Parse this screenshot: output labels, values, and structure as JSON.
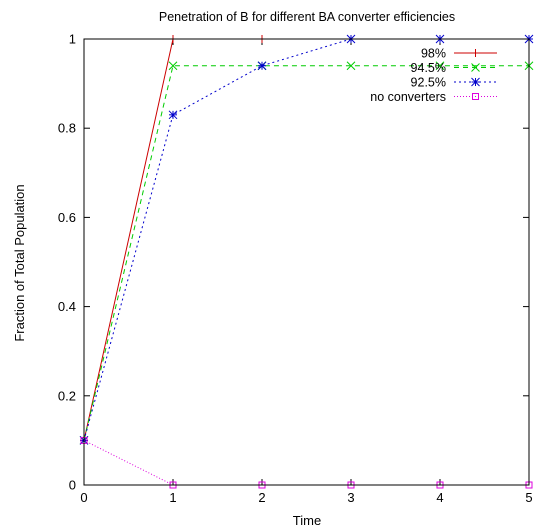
{
  "chart_data": {
    "type": "line",
    "title": "Penetration of B for different BA converter efficiencies",
    "xlabel": "Time",
    "ylabel": "Fraction of Total Population",
    "xlim": [
      0,
      5
    ],
    "ylim": [
      0,
      1
    ],
    "xticks": [
      "0",
      "1",
      "2",
      "3",
      "4",
      "5"
    ],
    "yticks": [
      "0",
      "0.2",
      "0.4",
      "0.6",
      "0.8",
      "1"
    ],
    "grid": false,
    "legend_position": "top-right",
    "x": [
      0,
      1,
      2,
      3,
      4,
      5
    ],
    "series": [
      {
        "name": "98%",
        "values": [
          0.1,
          1.0,
          1.0,
          1.0,
          1.0,
          1.0
        ],
        "color": "#cc0000",
        "marker": "plus",
        "dash": "solid"
      },
      {
        "name": "94.5%",
        "values": [
          0.1,
          0.94,
          0.94,
          0.94,
          0.94,
          0.94
        ],
        "color": "#00cc00",
        "marker": "cross",
        "dash": "dashed"
      },
      {
        "name": "92.5%",
        "values": [
          0.1,
          0.83,
          0.94,
          1.0,
          1.0,
          1.0
        ],
        "color": "#0000cc",
        "marker": "star",
        "dash": "dotted"
      },
      {
        "name": "no converters",
        "values": [
          0.1,
          0.0,
          0.0,
          0.0,
          0.0,
          0.0
        ],
        "color": "#dd00dd",
        "marker": "square",
        "dash": "finedot"
      }
    ]
  }
}
